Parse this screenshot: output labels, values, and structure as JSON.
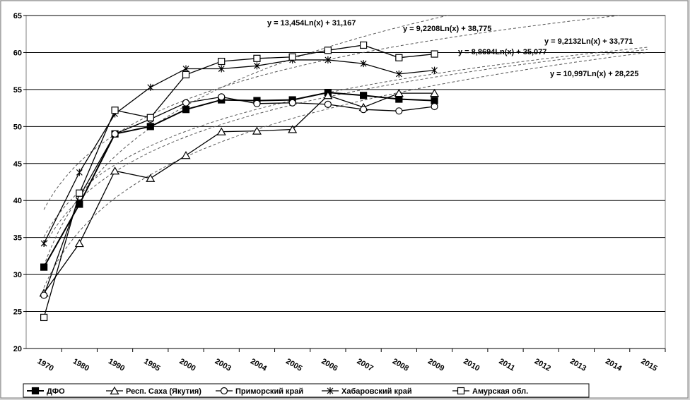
{
  "chart_data": {
    "type": "line",
    "categories": [
      "1970",
      "1980",
      "1990",
      "1995",
      "2000",
      "2003",
      "2004",
      "2005",
      "2006",
      "2007",
      "2008",
      "2009",
      "2010",
      "2011",
      "2012",
      "2013",
      "2014",
      "2015"
    ],
    "ylim": [
      20,
      65
    ],
    "yticks": [
      20,
      25,
      30,
      35,
      40,
      45,
      50,
      55,
      60,
      65
    ],
    "grid": true,
    "series": [
      {
        "name": "ДФО",
        "color": "#000000",
        "marker": "square-filled",
        "values": [
          31,
          39.5,
          49,
          50,
          52.3,
          53.6,
          53.5,
          53.6,
          54.6,
          54.2,
          53.7,
          53.5,
          null,
          null,
          null,
          null,
          null,
          null
        ]
      },
      {
        "name": "Респ. Саха (Якутия)",
        "color": "#000000",
        "marker": "triangle",
        "values": [
          27.5,
          34.2,
          44,
          43,
          46.1,
          49.3,
          49.4,
          49.6,
          54.2,
          52.6,
          54.5,
          54.5,
          null,
          null,
          null,
          null,
          null,
          null
        ]
      },
      {
        "name": "Приморский край",
        "color": "#000000",
        "marker": "circle",
        "values": [
          27.2,
          40.5,
          49,
          51,
          53.2,
          54,
          53.1,
          53.2,
          53,
          52.3,
          52.1,
          52.7,
          null,
          null,
          null,
          null,
          null,
          null
        ]
      },
      {
        "name": "Хабаровский край",
        "color": "#000000",
        "marker": "star",
        "values": [
          34.2,
          43.8,
          51.7,
          55.3,
          57.8,
          57.8,
          58.2,
          59,
          59,
          58.5,
          57.1,
          57.6,
          null,
          null,
          null,
          null,
          null,
          null
        ]
      },
      {
        "name": "Амурская обл.",
        "color": "#000000",
        "marker": "square",
        "values": [
          24.2,
          41,
          52.2,
          51.2,
          57,
          58.8,
          59.2,
          59.4,
          60.3,
          61,
          59.3,
          59.8,
          null,
          null,
          null,
          null,
          null,
          null
        ]
      }
    ],
    "trendlines": [
      {
        "label": "y = 13,454Ln(x) + 31,167",
        "slope": 13.454,
        "intercept": 31.167
      },
      {
        "label": "y = 9,2208Ln(x) + 38,775",
        "slope": 9.2208,
        "intercept": 38.775
      },
      {
        "label": "y = 9,2132Ln(x) + 33,771",
        "slope": 9.2132,
        "intercept": 33.771
      },
      {
        "label": "y = 8,8694Ln(x) + 35,077",
        "slope": 8.8694,
        "intercept": 35.077
      },
      {
        "label": "y = 10,997Ln(x) + 28,225",
        "slope": 10.997,
        "intercept": 28.225
      }
    ]
  }
}
